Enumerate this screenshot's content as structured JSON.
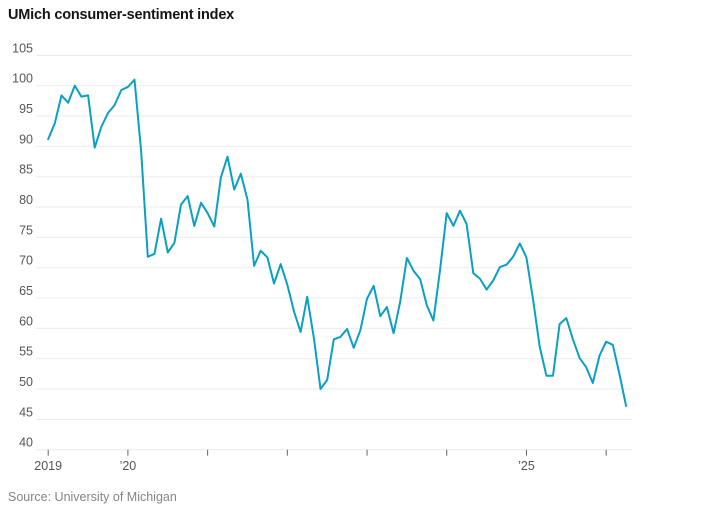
{
  "title": "UMich consumer-sentiment index",
  "source": "Source: University of Michigan",
  "colors": {
    "line": "#0ba0c2",
    "grid": "#ebebeb",
    "axis_text": "#555555",
    "tick": "#666666",
    "title_text": "#151515",
    "source_text": "#848484",
    "background": "#ffffff"
  },
  "chart_data": {
    "type": "line",
    "title": "UMich consumer-sentiment index",
    "series_name": "UMich consumer-sentiment index",
    "frequency": "monthly",
    "xlabel": "",
    "ylabel": "",
    "ylim": [
      40,
      105
    ],
    "grid": "horizontal",
    "legend": "none",
    "line_color": "#0ba0c2",
    "source": "Source: University of Michigan",
    "yticks": [
      40,
      45,
      50,
      55,
      60,
      65,
      70,
      75,
      80,
      85,
      90,
      95,
      100,
      105
    ],
    "xtick_years": [
      2019,
      2020,
      2021,
      2022,
      2023,
      2024,
      2025,
      2026
    ],
    "xtick_labels": [
      "2019",
      "’20",
      "",
      "",
      "",
      "",
      "’25",
      ""
    ],
    "x": [
      "2019-01",
      "2019-02",
      "2019-03",
      "2019-04",
      "2019-05",
      "2019-06",
      "2019-07",
      "2019-08",
      "2019-09",
      "2019-10",
      "2019-11",
      "2019-12",
      "2020-01",
      "2020-02",
      "2020-03",
      "2020-04",
      "2020-05",
      "2020-06",
      "2020-07",
      "2020-08",
      "2020-09",
      "2020-10",
      "2020-11",
      "2020-12",
      "2021-01",
      "2021-02",
      "2021-03",
      "2021-04",
      "2021-05",
      "2021-06",
      "2021-07",
      "2021-08",
      "2021-09",
      "2021-10",
      "2021-11",
      "2021-12",
      "2022-01",
      "2022-02",
      "2022-03",
      "2022-04",
      "2022-05",
      "2022-06",
      "2022-07",
      "2022-08",
      "2022-09",
      "2022-10",
      "2022-11",
      "2022-12",
      "2023-01",
      "2023-02",
      "2023-03",
      "2023-04",
      "2023-05",
      "2023-06",
      "2023-07",
      "2023-08",
      "2023-09",
      "2023-10",
      "2023-11",
      "2023-12",
      "2024-01",
      "2024-02",
      "2024-03",
      "2024-04",
      "2024-05",
      "2024-06",
      "2024-07",
      "2024-08",
      "2024-09",
      "2024-10",
      "2024-11",
      "2024-12",
      "2025-01",
      "2025-02",
      "2025-03",
      "2025-04",
      "2025-05",
      "2025-06",
      "2025-07",
      "2025-08",
      "2025-09",
      "2025-10",
      "2025-11",
      "2025-12",
      "2026-01",
      "2026-02",
      "2026-03",
      "2026-04"
    ],
    "values": [
      91.2,
      93.8,
      98.4,
      97.2,
      100.0,
      98.2,
      98.4,
      89.8,
      93.2,
      95.5,
      96.8,
      99.3,
      99.8,
      101.0,
      89.1,
      71.8,
      72.3,
      78.1,
      72.5,
      74.1,
      80.4,
      81.8,
      76.9,
      80.7,
      79.0,
      76.8,
      84.9,
      88.3,
      82.9,
      85.5,
      81.2,
      70.3,
      72.8,
      71.7,
      67.4,
      70.6,
      67.2,
      62.8,
      59.4,
      65.2,
      58.4,
      50.0,
      51.5,
      58.2,
      58.6,
      59.9,
      56.8,
      59.7,
      64.9,
      67.0,
      62.0,
      63.5,
      59.2,
      64.4,
      71.6,
      69.5,
      68.1,
      63.8,
      61.3,
      69.7,
      79.0,
      76.9,
      79.4,
      77.2,
      69.1,
      68.2,
      66.4,
      67.9,
      70.1,
      70.5,
      71.8,
      74.0,
      71.7,
      64.7,
      57.0,
      52.2,
      52.2,
      60.7,
      61.7,
      58.2,
      55.1,
      53.6,
      51.0,
      55.5,
      57.8,
      57.3,
      52.5,
      47.2
    ]
  }
}
